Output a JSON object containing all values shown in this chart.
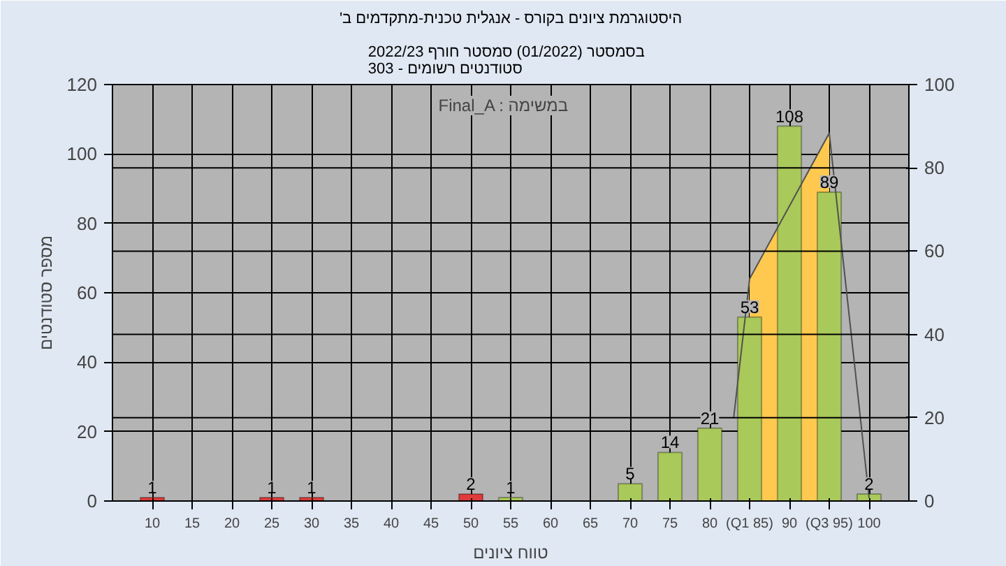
{
  "chart_data": {
    "type": "bar",
    "title": "'היסטוגרמת ציונים בקורס - אנגלית טכנית-מתקדמים ב",
    "subtitle": "בסמסטר  (01/2022)  סמסטר חורף 2022/23\nסטודנטים רשומים - 303",
    "xlabel": "טווח ציונים",
    "ylabel": "מספר סטודנטים",
    "annotations": [
      "Final_A : במשימה"
    ],
    "x": [
      10,
      25,
      30,
      50,
      55,
      70,
      75,
      80,
      85,
      90,
      95,
      100
    ],
    "series": [
      {
        "value_labels": [
          "1",
          "1",
          "1",
          "2",
          "1",
          "5",
          "14",
          "21",
          "53",
          "108",
          "89",
          "2"
        ],
        "colors": [
          "#e03a3a",
          "#e03a3a",
          "#e03a3a",
          "#e03a3a",
          "#a9c95a",
          "#a9c95a",
          "#a9c95a",
          "#a9c95a",
          "#a9c95a",
          "#a9c95a",
          "#a9c95a",
          "#a9c95a"
        ],
        "values": [
          1,
          1,
          1,
          2,
          1,
          5,
          14,
          21,
          53,
          108,
          89,
          2
        ]
      },
      {
        "type": "area",
        "color": "#ffc94f",
        "x": [
          85,
          95
        ],
        "values": [
          64,
          106
        ]
      },
      {
        "type": "line",
        "color": "#505050",
        "x": [
          83,
          85,
          95,
          100
        ],
        "values": [
          24,
          64,
          106,
          1
        ]
      }
    ],
    "xlim": [
      5,
      105
    ],
    "xticks": [
      10,
      15,
      20,
      25,
      30,
      35,
      40,
      45,
      50,
      55,
      60,
      65,
      70,
      75,
      80,
      {
        "value": 85,
        "label": "(Q1 85)"
      },
      90,
      {
        "value": 95,
        "label": "(Q3 95)"
      },
      100
    ],
    "ylim": [
      0,
      120
    ],
    "yticks": [
      0,
      20,
      40,
      60,
      80,
      100,
      120
    ],
    "y2lim": [
      0,
      100
    ],
    "y2ticks": [
      0,
      20,
      40,
      60,
      80,
      100
    ],
    "grid": true
  }
}
